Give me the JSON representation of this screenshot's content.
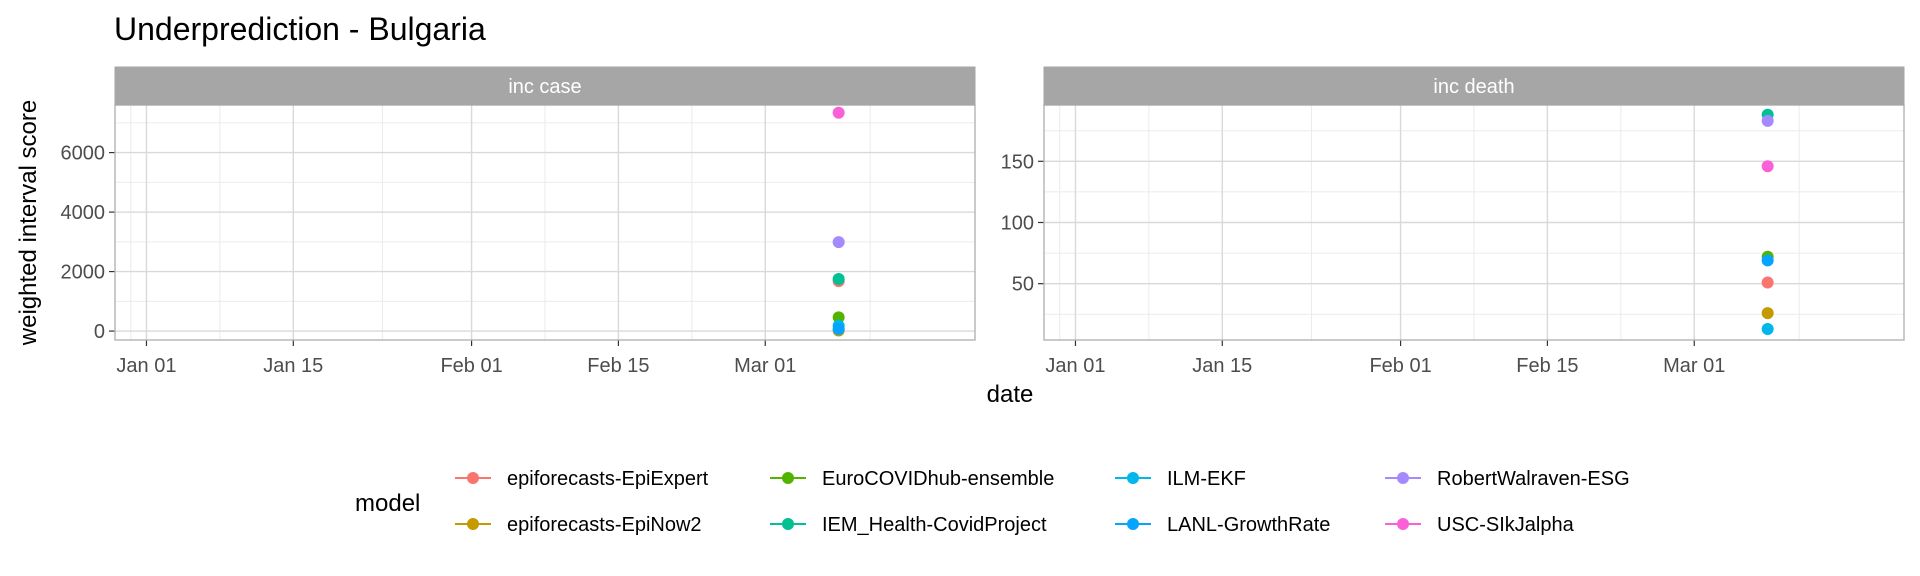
{
  "title": "Underprediction - Bulgaria",
  "chart_data": {
    "type": "scatter",
    "xlabel": "date",
    "ylabel": "weighted interval score",
    "x_ticks": [
      "Jan 01",
      "Jan 15",
      "Feb 01",
      "Feb 15",
      "Mar 01"
    ],
    "xlim": [
      "2020-12-29",
      "2021-03-21"
    ],
    "grid": true,
    "legend": {
      "title": "model",
      "position": "bottom",
      "entries": [
        {
          "name": "epiforecasts-EpiExpert",
          "color": "#F8766D"
        },
        {
          "name": "epiforecasts-EpiNow2",
          "color": "#C49A00"
        },
        {
          "name": "EuroCOVIDhub-ensemble",
          "color": "#53B400"
        },
        {
          "name": "IEM_Health-CovidProject",
          "color": "#00C094"
        },
        {
          "name": "ILM-EKF",
          "color": "#00B6EB"
        },
        {
          "name": "LANL-GrowthRate",
          "color": "#06A4FF"
        },
        {
          "name": "RobertWalraven-ESG",
          "color": "#A58AFF"
        },
        {
          "name": "USC-SIkJalpha",
          "color": "#FB61D7"
        }
      ]
    },
    "panels": [
      {
        "name": "inc case",
        "ylim": [
          -300,
          7600
        ],
        "y_ticks": [
          0,
          2000,
          4000,
          6000
        ],
        "date": "2021-03-08",
        "points": [
          {
            "model": "epiforecasts-EpiExpert",
            "y": 1680
          },
          {
            "model": "epiforecasts-EpiNow2",
            "y": 20
          },
          {
            "model": "EuroCOVIDhub-ensemble",
            "y": 460
          },
          {
            "model": "IEM_Health-CovidProject",
            "y": 1750
          },
          {
            "model": "ILM-EKF",
            "y": 180
          },
          {
            "model": "LANL-GrowthRate",
            "y": 70
          },
          {
            "model": "RobertWalraven-ESG",
            "y": 2990
          },
          {
            "model": "USC-SIkJalpha",
            "y": 7340
          }
        ]
      },
      {
        "name": "inc death",
        "ylim": [
          4,
          196
        ],
        "y_ticks": [
          50,
          100,
          150
        ],
        "date": "2021-03-08",
        "points": [
          {
            "model": "epiforecasts-EpiExpert",
            "y": 51
          },
          {
            "model": "epiforecasts-EpiNow2",
            "y": 26
          },
          {
            "model": "EuroCOVIDhub-ensemble",
            "y": 72
          },
          {
            "model": "IEM_Health-CovidProject",
            "y": 188
          },
          {
            "model": "ILM-EKF",
            "y": 13
          },
          {
            "model": "LANL-GrowthRate",
            "y": 69
          },
          {
            "model": "RobertWalraven-ESG",
            "y": 183
          },
          {
            "model": "USC-SIkJalpha",
            "y": 146
          }
        ]
      }
    ]
  }
}
